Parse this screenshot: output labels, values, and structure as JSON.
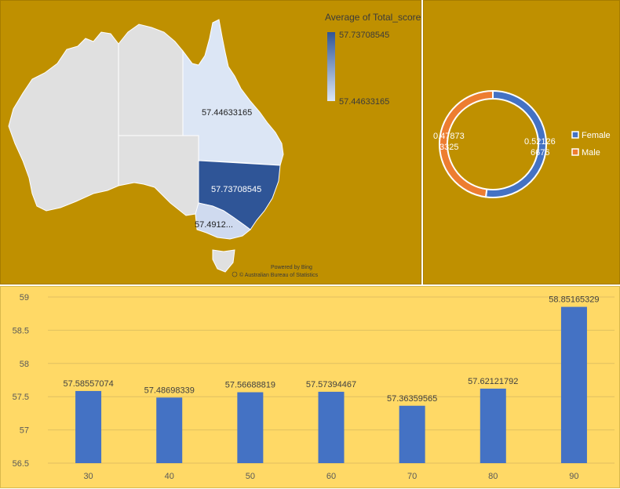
{
  "map": {
    "legend_title": "Average of Total_score",
    "legend_max": "57.73708545",
    "legend_min": "57.44633165",
    "credit_line1": "Powered by Bing",
    "credit_line2": "© Australian Bureau of Statistics",
    "regions": [
      {
        "label": "57.44633165",
        "value": 57.44633165
      },
      {
        "label": "57.73708545",
        "value": 57.73708545
      },
      {
        "label": "57.4912...",
        "value": 57.4912
      }
    ],
    "colors": {
      "low": "#dce6f5",
      "high": "#2f5597",
      "unshaded": "#e0e0e0",
      "background": "#bf9000"
    }
  },
  "donut": {
    "slices": [
      {
        "name": "Female",
        "value": 0.521266676,
        "label_line1": "0.52126",
        "label_line2": "6676",
        "color": "#4472c4"
      },
      {
        "name": "Male",
        "value": 0.478733325,
        "label_line1": "0.47873",
        "label_line2": "3325",
        "color": "#ed7d31"
      }
    ]
  },
  "chart_data": {
    "type": "bar",
    "categories": [
      "30",
      "40",
      "50",
      "60",
      "70",
      "80",
      "90"
    ],
    "values": [
      57.58557074,
      57.48698339,
      57.56688819,
      57.57394467,
      57.36359565,
      57.62121792,
      58.85165329
    ],
    "value_labels": [
      "57.58557074",
      "57.48698339",
      "57.56688819",
      "57.57394467",
      "57.36359565",
      "57.62121792",
      "58.85165329"
    ],
    "title": "",
    "xlabel": "",
    "ylabel": "",
    "ylim": [
      56.5,
      59
    ],
    "yticks": [
      "56.5",
      "57",
      "57.5",
      "58",
      "58.5",
      "59"
    ],
    "grid": true,
    "bar_color": "#4472c4"
  }
}
